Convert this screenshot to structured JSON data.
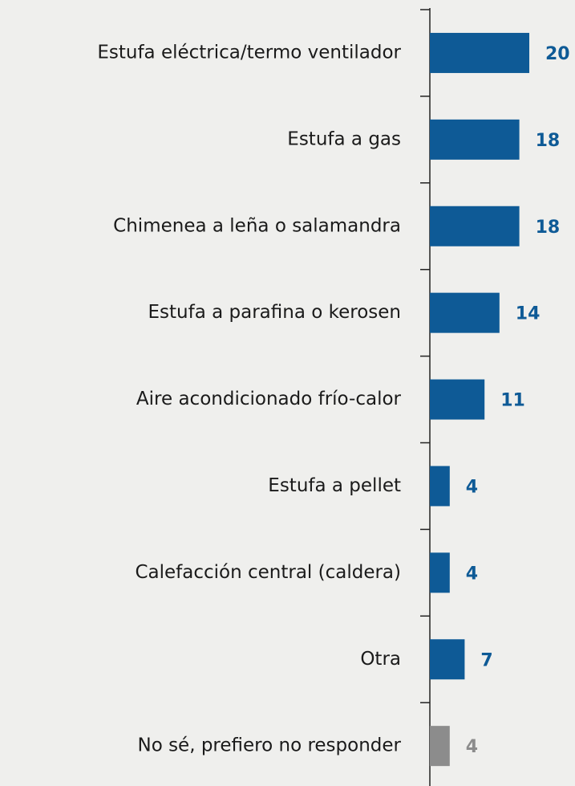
{
  "chart_data": {
    "type": "barh",
    "categories": [
      "Estufa eléctrica/termo ventilador",
      "Estufa a gas",
      "Chimenea a leña o salamandra",
      "Estufa a parafina o kerosen",
      "Aire acondicionado frío-calor",
      "Estufa a pellet",
      "Calefacción central (caldera)",
      "Otra",
      "No sé, prefiero no responder"
    ],
    "values": [
      20,
      18,
      18,
      14,
      11,
      4,
      4,
      7,
      4
    ],
    "colors": [
      "#0e5a96",
      "#0e5a96",
      "#0e5a96",
      "#0e5a96",
      "#0e5a96",
      "#0e5a96",
      "#0e5a96",
      "#0e5a96",
      "#8c8c8c"
    ]
  }
}
